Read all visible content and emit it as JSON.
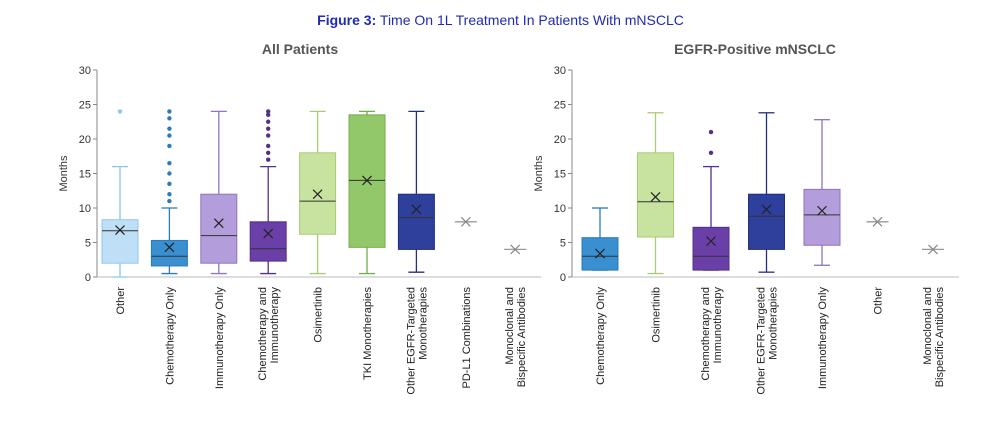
{
  "figure": {
    "prefix": "Figure 3:",
    "title": "Time On 1L Treatment In Patients With mNSCLC",
    "accent": "#1f2bb8"
  },
  "chart_data": [
    {
      "type": "box",
      "title": "All Patients",
      "ylabel": "Months",
      "ylim": [
        0,
        30
      ],
      "yticks": [
        0,
        5,
        10,
        15,
        20,
        25,
        30
      ],
      "grid": false,
      "categories": [
        {
          "label": [
            "Other"
          ],
          "min": 0,
          "q1": 2,
          "median": 6.7,
          "q3": 8.3,
          "max": 16,
          "mean": 6.8,
          "outliers": [
            24
          ],
          "fill": "#bfdff6",
          "stroke": "#8fc6ee"
        },
        {
          "label": [
            "Chemotherapy Only"
          ],
          "min": 0.5,
          "q1": 1.6,
          "median": 3,
          "q3": 5.3,
          "max": 10,
          "mean": 4.3,
          "outliers": [
            11,
            12,
            13.5,
            15,
            16.5,
            19,
            20.5,
            21.5,
            23,
            24
          ],
          "fill": "#3a8fd0",
          "stroke": "#2a7bbf"
        },
        {
          "label": [
            "Immunotherapy Only"
          ],
          "min": 0.5,
          "q1": 2,
          "median": 6,
          "q3": 12,
          "max": 24,
          "mean": 7.8,
          "outliers": [],
          "fill": "#b39ddb",
          "stroke": "#8e74c2"
        },
        {
          "label": [
            "Chemotherapy and",
            "Immunotherapy"
          ],
          "min": 0.5,
          "q1": 2.3,
          "median": 4.1,
          "q3": 8,
          "max": 16,
          "mean": 6.3,
          "outliers": [
            17,
            18,
            19,
            20.5,
            21.5,
            22.5,
            23.5,
            24
          ],
          "fill": "#6b3fa8",
          "stroke": "#55308a"
        },
        {
          "label": [
            "Osimertinib"
          ],
          "min": 0.5,
          "q1": 6.2,
          "median": 11,
          "q3": 18,
          "max": 24,
          "mean": 12,
          "outliers": [],
          "fill": "#c8e2a0",
          "stroke": "#a8cc72"
        },
        {
          "label": [
            "TKI Monotherapies"
          ],
          "min": 0.5,
          "q1": 4.3,
          "median": 14,
          "q3": 23.5,
          "max": 24,
          "mean": 14,
          "outliers": [],
          "fill": "#92c86a",
          "stroke": "#74ad4a"
        },
        {
          "label": [
            "Other EGFR-Targeted",
            "Monotherapies"
          ],
          "min": 0.7,
          "q1": 4,
          "median": 8.6,
          "q3": 12,
          "max": 24,
          "mean": 9.8,
          "outliers": [],
          "fill": "#2e3f9c",
          "stroke": "#22307d"
        },
        {
          "label": [
            "PD-L1 Combinations"
          ],
          "min": 8,
          "q1": 8,
          "median": 8,
          "q3": 8,
          "max": 8,
          "mean": 8,
          "outliers": [],
          "fill": "#999999",
          "stroke": "#999999"
        },
        {
          "label": [
            "Monoclonal and",
            "Bispecific Antibodies"
          ],
          "min": 4,
          "q1": 4,
          "median": 4,
          "q3": 4,
          "max": 4,
          "mean": 4,
          "outliers": [],
          "fill": "#999999",
          "stroke": "#999999"
        }
      ]
    },
    {
      "type": "box",
      "title": "EGFR-Positive mNSCLC",
      "ylabel": "Months",
      "ylim": [
        0,
        30
      ],
      "yticks": [
        0,
        5,
        10,
        15,
        20,
        25,
        30
      ],
      "grid": false,
      "categories": [
        {
          "label": [
            "Chemotherapy Only"
          ],
          "min": 1,
          "q1": 1,
          "median": 3,
          "q3": 5.7,
          "max": 10,
          "mean": 3.4,
          "outliers": [],
          "fill": "#3a8fd0",
          "stroke": "#2a7bbf"
        },
        {
          "label": [
            "Osimertinib"
          ],
          "min": 0.5,
          "q1": 5.8,
          "median": 10.9,
          "q3": 18,
          "max": 23.8,
          "mean": 11.6,
          "outliers": [],
          "fill": "#c8e2a0",
          "stroke": "#a8cc72"
        },
        {
          "label": [
            "Chemotherapy and",
            "Immunotherapy"
          ],
          "min": 1,
          "q1": 1,
          "median": 3,
          "q3": 7.2,
          "max": 16,
          "mean": 5.2,
          "outliers": [
            18,
            21
          ],
          "fill": "#6b3fa8",
          "stroke": "#55308a"
        },
        {
          "label": [
            "Other EGFR-Targeted",
            "Monotherapies"
          ],
          "min": 0.7,
          "q1": 4,
          "median": 8.8,
          "q3": 12,
          "max": 23.8,
          "mean": 9.8,
          "outliers": [],
          "fill": "#2e3f9c",
          "stroke": "#22307d"
        },
        {
          "label": [
            "Immunotherapy Only"
          ],
          "min": 1.7,
          "q1": 4.6,
          "median": 9,
          "q3": 12.7,
          "max": 22.8,
          "mean": 9.6,
          "outliers": [],
          "fill": "#b39ddb",
          "stroke": "#8e74c2"
        },
        {
          "label": [
            "Other"
          ],
          "min": 8,
          "q1": 8,
          "median": 8,
          "q3": 8,
          "max": 8,
          "mean": 8,
          "outliers": [],
          "fill": "#999999",
          "stroke": "#999999"
        },
        {
          "label": [
            "Monoclonal and",
            "Bispecific Antibodies"
          ],
          "min": 4,
          "q1": 4,
          "median": 4,
          "q3": 4,
          "max": 4,
          "mean": 4,
          "outliers": [],
          "fill": "#999999",
          "stroke": "#999999"
        }
      ]
    }
  ]
}
